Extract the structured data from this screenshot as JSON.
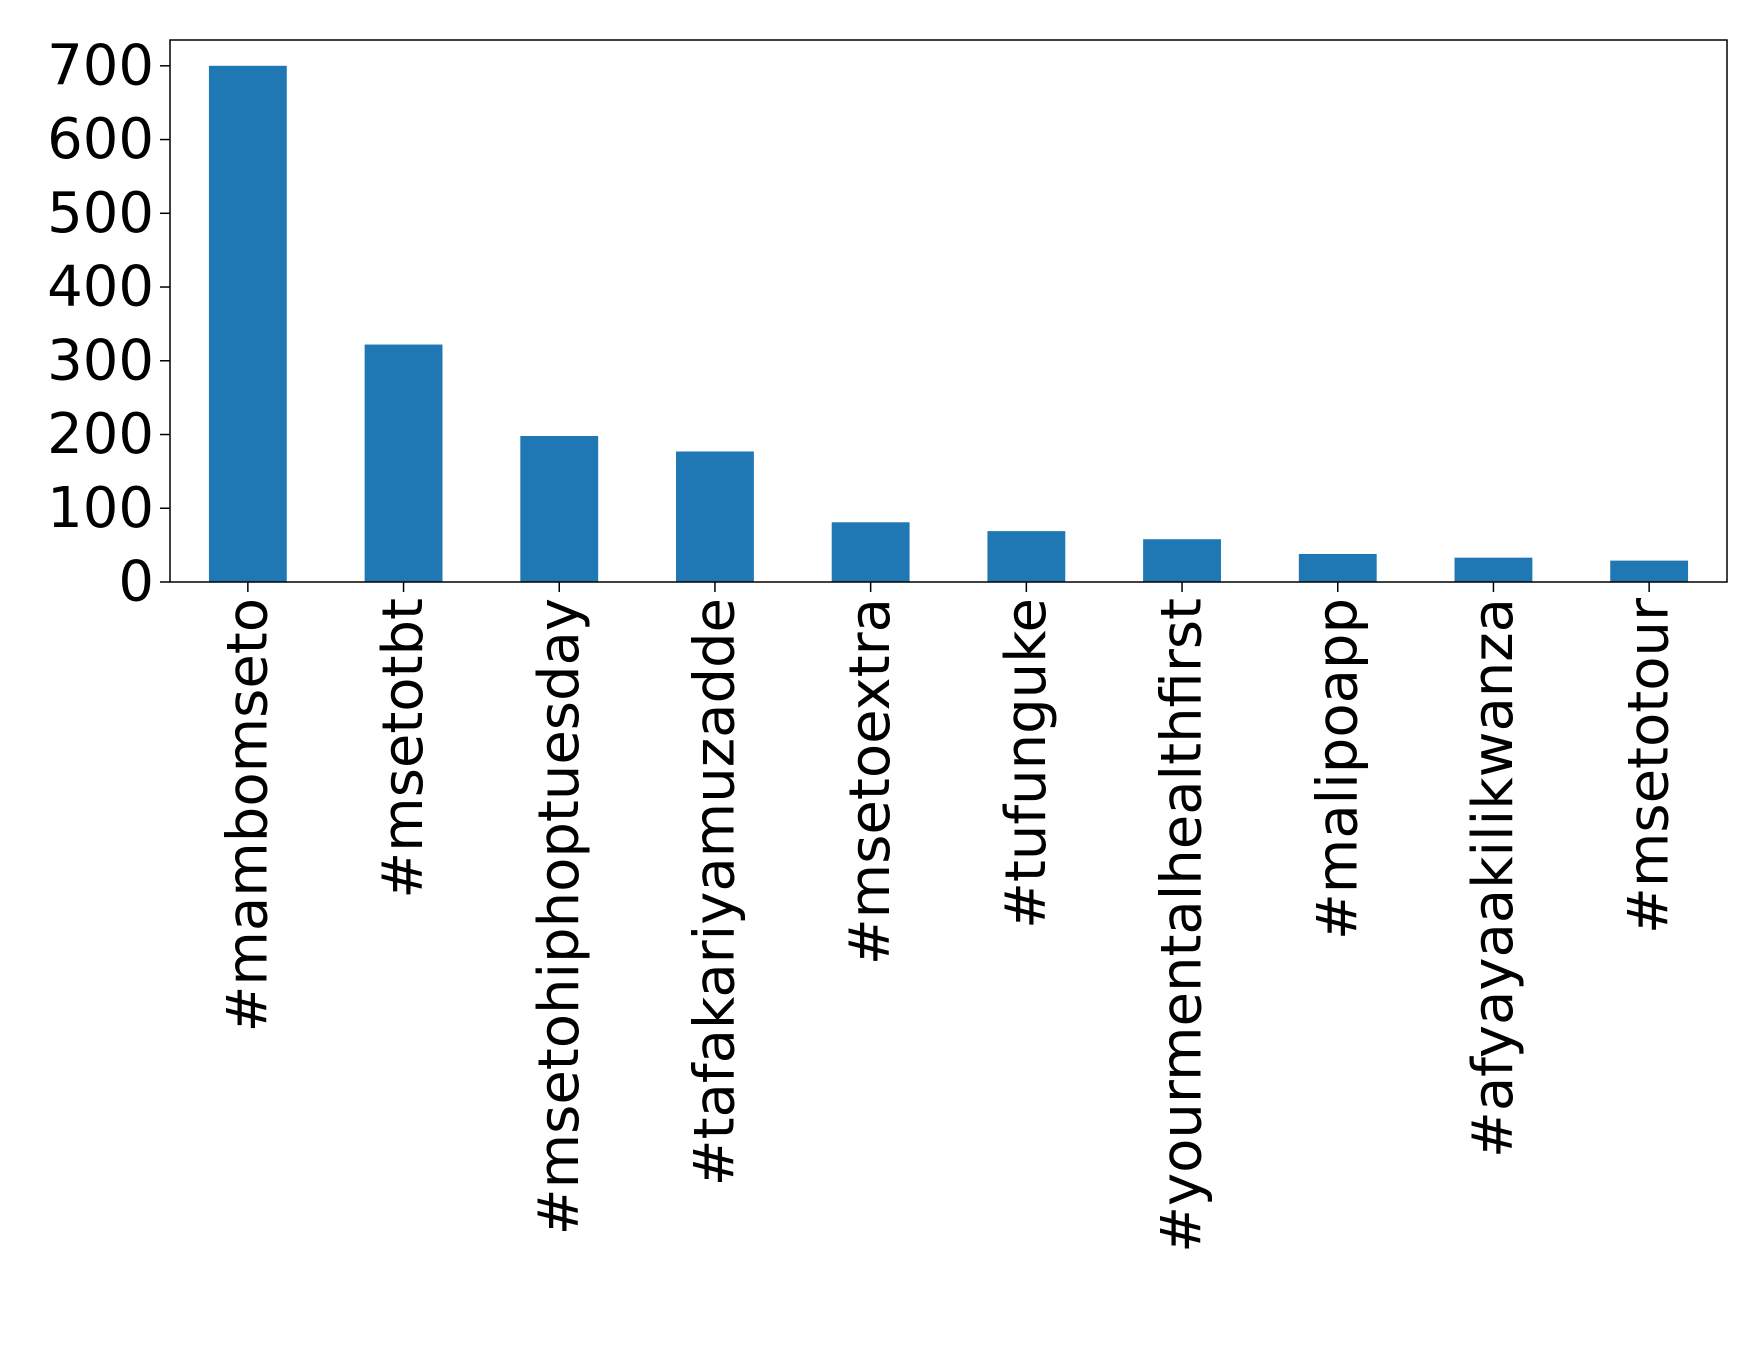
{
  "chart_data": {
    "type": "bar",
    "title": "",
    "xlabel": "",
    "ylabel": "",
    "categories": [
      "#mambomseto",
      "#msetotbt",
      "#msetohiphoptuesday",
      "#tafakariyamuzadde",
      "#msetoextra",
      "#tufunguke",
      "#yourmentalhealthfirst",
      "#malipoapp",
      "#afyayaakilikwanza",
      "#msetotour"
    ],
    "values": [
      700,
      322,
      198,
      177,
      81,
      69,
      58,
      38,
      33,
      29
    ],
    "ylim": [
      0,
      735
    ],
    "yticks": [
      0,
      100,
      200,
      300,
      400,
      500,
      600,
      700
    ],
    "x_tick_rotation": "vertical",
    "grid": false,
    "legend": "none",
    "bar_color": "#1f77b4"
  }
}
